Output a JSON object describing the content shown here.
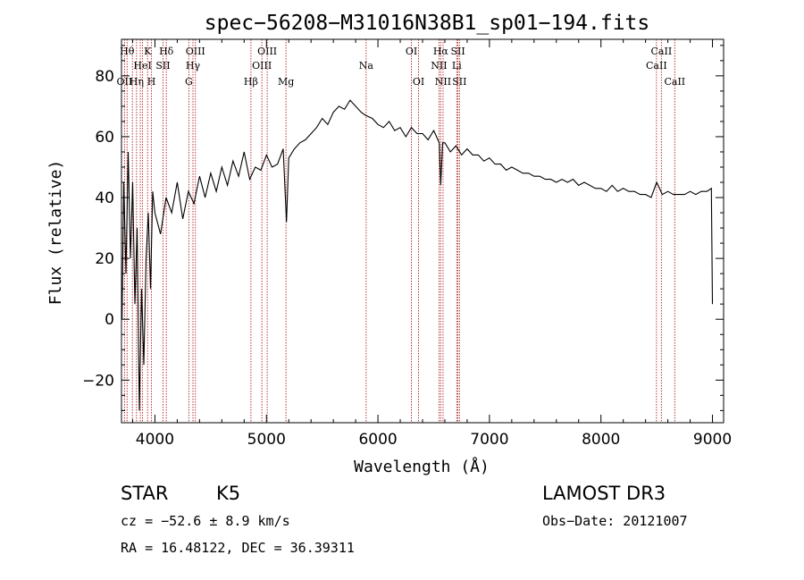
{
  "chart_data": {
    "type": "line",
    "title": "spec−56208−M31016N38B1_sp01−194.fits",
    "xlabel": "Wavelength (Å)",
    "ylabel": "Flux (relative)",
    "xlim": [
      3700,
      9100
    ],
    "ylim": [
      -34,
      92
    ],
    "x_ticks": [
      4000,
      5000,
      6000,
      7000,
      8000,
      9000
    ],
    "x_tick_labels": [
      "4000",
      "5000",
      "6000",
      "7000",
      "8000",
      "9000"
    ],
    "y_ticks": [
      -20,
      0,
      20,
      40,
      60,
      80
    ],
    "y_tick_labels": [
      "−20",
      "0",
      "20",
      "40",
      "60",
      "80"
    ],
    "line_color": "#000000",
    "marker_color": "#b22222",
    "series": [
      {
        "name": "flux",
        "x": [
          3705,
          3720,
          3740,
          3760,
          3780,
          3800,
          3820,
          3840,
          3860,
          3880,
          3900,
          3920,
          3940,
          3960,
          3980,
          4000,
          4050,
          4100,
          4150,
          4200,
          4250,
          4300,
          4350,
          4400,
          4450,
          4500,
          4550,
          4600,
          4650,
          4700,
          4750,
          4800,
          4850,
          4900,
          4950,
          5000,
          5050,
          5100,
          5150,
          5180,
          5200,
          5250,
          5300,
          5350,
          5400,
          5450,
          5500,
          5550,
          5600,
          5650,
          5700,
          5750,
          5800,
          5850,
          5890,
          5950,
          6000,
          6050,
          6100,
          6150,
          6200,
          6250,
          6300,
          6350,
          6400,
          6450,
          6500,
          6550,
          6563,
          6580,
          6600,
          6650,
          6700,
          6750,
          6800,
          6850,
          6900,
          6950,
          7000,
          7050,
          7100,
          7150,
          7200,
          7250,
          7300,
          7350,
          7400,
          7450,
          7500,
          7550,
          7600,
          7650,
          7700,
          7750,
          7800,
          7850,
          7900,
          7950,
          8000,
          8050,
          8100,
          8150,
          8200,
          8250,
          8300,
          8350,
          8400,
          8450,
          8500,
          8550,
          8600,
          8650,
          8700,
          8750,
          8800,
          8850,
          8900,
          8950,
          8990,
          9000
        ],
        "y": [
          0,
          45,
          15,
          55,
          20,
          45,
          5,
          30,
          -30,
          10,
          -15,
          20,
          35,
          10,
          42,
          35,
          28,
          40,
          35,
          45,
          33,
          42,
          38,
          47,
          40,
          48,
          42,
          50,
          44,
          52,
          47,
          55,
          46,
          50,
          49,
          54,
          50,
          51,
          56,
          32,
          53,
          56,
          58,
          59,
          61,
          63,
          66,
          64,
          68,
          70,
          69,
          72,
          70,
          68,
          67,
          66,
          64,
          63,
          65,
          62,
          63,
          60,
          63,
          61,
          61,
          59,
          62,
          58,
          44,
          58,
          58,
          55,
          57,
          54,
          56,
          54,
          54,
          52,
          53,
          51,
          51,
          49,
          50,
          49,
          48,
          48,
          47,
          47,
          46,
          46,
          45,
          46,
          45,
          46,
          44,
          45,
          44,
          43,
          43,
          42,
          44,
          42,
          43,
          42,
          42,
          41,
          41,
          40,
          45,
          41,
          42,
          41,
          41,
          41,
          42,
          41,
          42,
          42,
          43,
          5
        ]
      }
    ],
    "spectral_lines": [
      {
        "wavelength": 3727,
        "label": "OII",
        "row": 3
      },
      {
        "wavelength": 3750,
        "label": "Hθ",
        "row": 1
      },
      {
        "wavelength": 3798,
        "label": "",
        "row": 0
      },
      {
        "wavelength": 3835,
        "label": "Hη",
        "row": 3
      },
      {
        "wavelength": 3869,
        "label": "",
        "row": 0
      },
      {
        "wavelength": 3889,
        "label": "HeI",
        "row": 2
      },
      {
        "wavelength": 3934,
        "label": "K",
        "row": 1
      },
      {
        "wavelength": 3969,
        "label": "H",
        "row": 3
      },
      {
        "wavelength": 4072,
        "label": "SII",
        "row": 2
      },
      {
        "wavelength": 4102,
        "label": "Hδ",
        "row": 1
      },
      {
        "wavelength": 4304,
        "label": "G",
        "row": 3
      },
      {
        "wavelength": 4341,
        "label": "Hγ",
        "row": 2
      },
      {
        "wavelength": 4363,
        "label": "OIII",
        "row": 1
      },
      {
        "wavelength": 4861,
        "label": "Hβ",
        "row": 3
      },
      {
        "wavelength": 4959,
        "label": "OIII",
        "row": 2
      },
      {
        "wavelength": 5007,
        "label": "OIII",
        "row": 1
      },
      {
        "wavelength": 5175,
        "label": "Mg",
        "row": 3
      },
      {
        "wavelength": 5894,
        "label": "Na",
        "row": 2
      },
      {
        "wavelength": 6300,
        "label": "OI",
        "row": 1
      },
      {
        "wavelength": 6364,
        "label": "OI",
        "row": 3
      },
      {
        "wavelength": 6548,
        "label": "NII",
        "row": 2
      },
      {
        "wavelength": 6563,
        "label": "Hα",
        "row": 1
      },
      {
        "wavelength": 6584,
        "label": "NII",
        "row": 3
      },
      {
        "wavelength": 6707,
        "label": "Li",
        "row": 2
      },
      {
        "wavelength": 6717,
        "label": "SII",
        "row": 1
      },
      {
        "wavelength": 6731,
        "label": "SII",
        "row": 3
      },
      {
        "wavelength": 8498,
        "label": "CaII",
        "row": 2
      },
      {
        "wavelength": 8542,
        "label": "CaII",
        "row": 1
      },
      {
        "wavelength": 8662,
        "label": "CaII",
        "row": 3
      }
    ]
  },
  "info": {
    "class": "STAR",
    "subclass": "K5",
    "cz": "cz = −52.6 ± 8.9 km/s",
    "coords": "RA =  16.48122, DEC =  36.39311",
    "survey": "LAMOST DR3",
    "obs_date": "Obs−Date: 20121007"
  }
}
